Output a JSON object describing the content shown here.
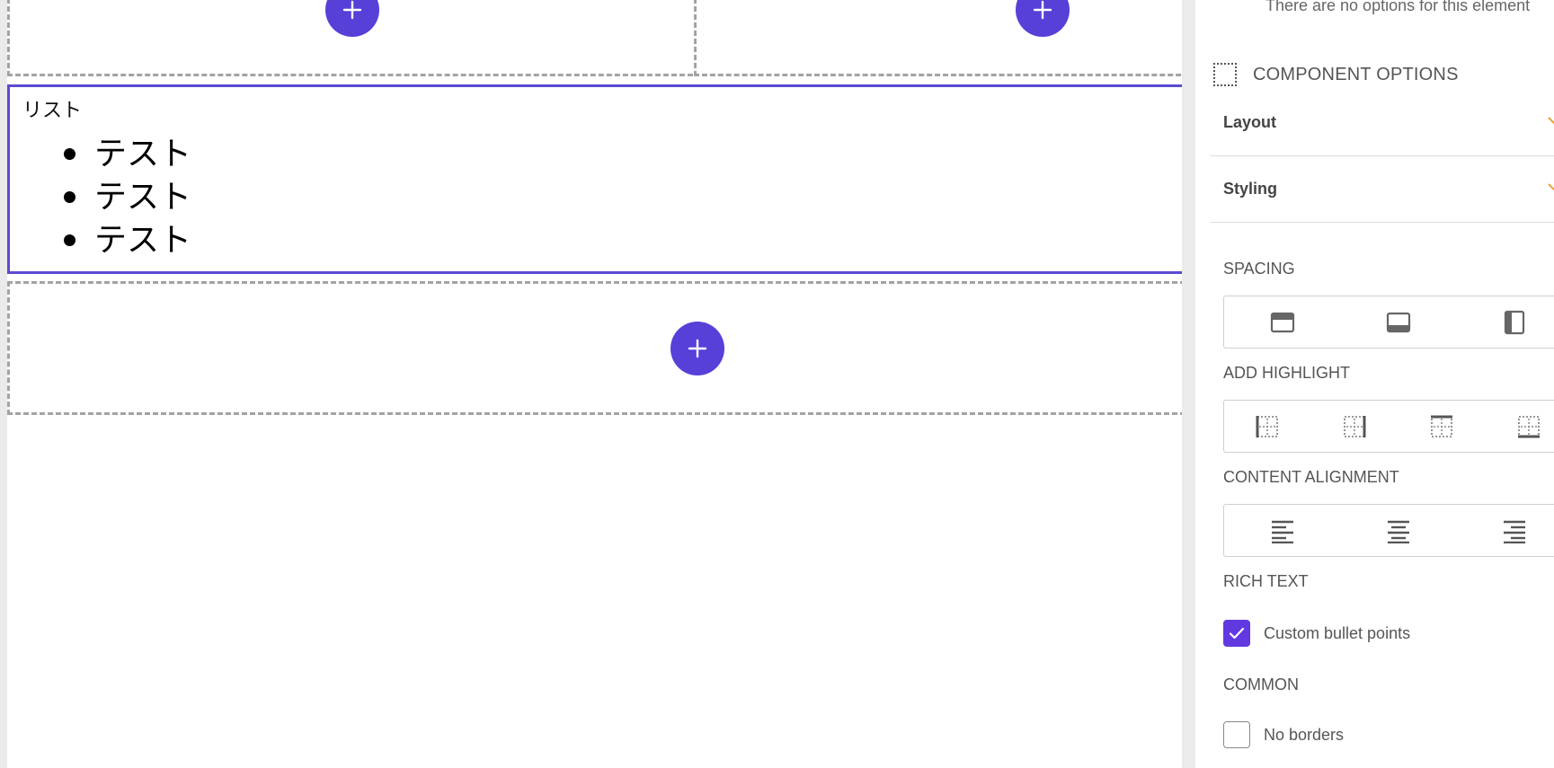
{
  "canvas": {
    "list_title": "リスト",
    "list_items": [
      "テスト",
      "テスト",
      "テスト"
    ],
    "add_symbol": "+"
  },
  "panel": {
    "no_options_note": "There are no options for this element",
    "component_options_label": "COMPONENT OPTIONS",
    "accordions": {
      "layout": "Layout",
      "styling": "Styling"
    },
    "sections": {
      "spacing": "SPACING",
      "add_highlight": "ADD HIGHLIGHT",
      "content_alignment": "CONTENT ALIGNMENT",
      "rich_text": "RICH TEXT",
      "common": "COMMON"
    },
    "checkboxes": {
      "custom_bullet_points": {
        "label": "Custom bullet points",
        "checked": true
      },
      "no_borders": {
        "label": "No borders",
        "checked": false
      }
    }
  },
  "colors": {
    "accent": "#5640d8",
    "checkbox_on": "#6238e0",
    "selected_border": "#5b4bd1",
    "accordion_chevron": "#e8a33a"
  },
  "icons": [
    "plus-icon",
    "dotted-square-icon",
    "chevron-icon",
    "spacing-top-icon",
    "spacing-bottom-icon",
    "spacing-side-icon",
    "highlight-left-icon",
    "highlight-right-icon",
    "highlight-top-icon",
    "highlight-bottom-icon",
    "align-left-icon",
    "align-center-icon",
    "align-right-icon",
    "checkmark-icon"
  ]
}
